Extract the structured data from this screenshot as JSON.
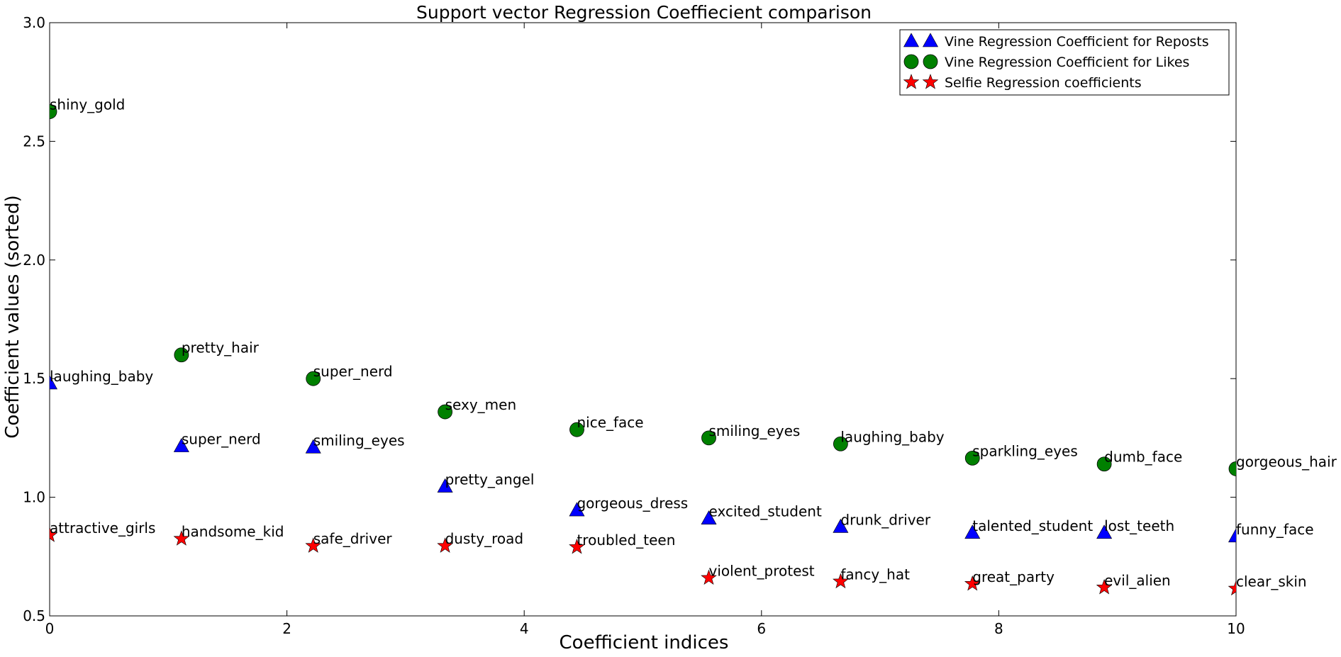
{
  "chart_data": {
    "type": "scatter",
    "title": "Support vector Regression Coeffiecient comparison",
    "xlabel": "Coefficient indices",
    "ylabel": "Coefficient values (sorted)",
    "xlim": [
      0,
      10
    ],
    "ylim": [
      0.5,
      3.0
    ],
    "xticks": [
      "0",
      "2",
      "4",
      "6",
      "8",
      "10"
    ],
    "yticks": [
      "0.5",
      "1.0",
      "1.5",
      "2.0",
      "2.5",
      "3.0"
    ],
    "grid": false,
    "legend_position": "top-right",
    "x": [
      0,
      1.111,
      2.222,
      3.333,
      4.444,
      5.556,
      6.667,
      7.778,
      8.889,
      10
    ],
    "series": [
      {
        "name": "Vine Regression Coefficient for Reposts",
        "marker": "triangle",
        "color": "#0000ff",
        "values": [
          1.48,
          1.215,
          1.21,
          1.045,
          0.945,
          0.91,
          0.875,
          0.85,
          0.85,
          0.835
        ],
        "labels": [
          "laughing_baby",
          "super_nerd",
          "smiling_eyes",
          "pretty_angel",
          "gorgeous_dress",
          "excited_student",
          "drunk_driver",
          "talented_student",
          "lost_teeth",
          "funny_face"
        ]
      },
      {
        "name": "Vine Regression Coefficient for Likes",
        "marker": "circle",
        "color": "#008000",
        "values": [
          2.625,
          1.6,
          1.5,
          1.36,
          1.285,
          1.25,
          1.225,
          1.165,
          1.14,
          1.12
        ],
        "labels": [
          "shiny_gold",
          "pretty_hair",
          "super_nerd",
          "sexy_men",
          "nice_face",
          "smiling_eyes",
          "laughing_baby",
          "sparkling_eyes",
          "dumb_face",
          "gorgeous_hair"
        ]
      },
      {
        "name": "Selfie Regression coefficients",
        "marker": "star",
        "color": "#ff0000",
        "values": [
          0.84,
          0.825,
          0.795,
          0.795,
          0.79,
          0.66,
          0.645,
          0.635,
          0.62,
          0.615
        ],
        "labels": [
          "attractive_girls",
          "handsome_kid",
          "safe_driver",
          "dusty_road",
          "troubled_teen",
          "violent_protest",
          "fancy_hat",
          "great_party",
          "evil_alien",
          "clear_skin"
        ]
      }
    ]
  }
}
